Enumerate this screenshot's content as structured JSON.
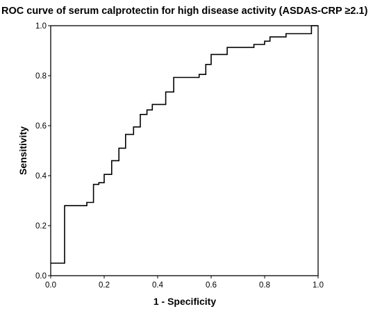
{
  "chart_data": {
    "type": "line",
    "title": "ROC curve of serum calprotectin for high disease activity (ASDAS-CRP ≥2.1)",
    "xlabel": "1 - Specificity",
    "ylabel": "Sensitivity",
    "xlim": [
      0,
      1
    ],
    "ylim": [
      0,
      1
    ],
    "grid": false,
    "legend": "none",
    "x_ticks": [
      "0.0",
      "0.2",
      "0.4",
      "0.6",
      "0.8",
      "1.0"
    ],
    "y_ticks": [
      "0.0",
      "0.2",
      "0.4",
      "0.6",
      "0.8",
      "1.0"
    ],
    "series": [
      {
        "color": "#000000",
        "step": true,
        "points": [
          [
            0.0,
            0.05
          ],
          [
            0.052,
            0.05
          ],
          [
            0.052,
            0.28
          ],
          [
            0.135,
            0.28
          ],
          [
            0.135,
            0.293
          ],
          [
            0.16,
            0.293
          ],
          [
            0.16,
            0.365
          ],
          [
            0.18,
            0.365
          ],
          [
            0.18,
            0.372
          ],
          [
            0.2,
            0.372
          ],
          [
            0.2,
            0.405
          ],
          [
            0.228,
            0.405
          ],
          [
            0.228,
            0.46
          ],
          [
            0.255,
            0.46
          ],
          [
            0.255,
            0.51
          ],
          [
            0.28,
            0.51
          ],
          [
            0.28,
            0.565
          ],
          [
            0.31,
            0.565
          ],
          [
            0.31,
            0.595
          ],
          [
            0.335,
            0.595
          ],
          [
            0.335,
            0.645
          ],
          [
            0.36,
            0.645
          ],
          [
            0.36,
            0.663
          ],
          [
            0.38,
            0.663
          ],
          [
            0.38,
            0.685
          ],
          [
            0.43,
            0.685
          ],
          [
            0.43,
            0.735
          ],
          [
            0.46,
            0.735
          ],
          [
            0.46,
            0.793
          ],
          [
            0.555,
            0.793
          ],
          [
            0.555,
            0.805
          ],
          [
            0.58,
            0.805
          ],
          [
            0.58,
            0.845
          ],
          [
            0.6,
            0.845
          ],
          [
            0.6,
            0.885
          ],
          [
            0.66,
            0.885
          ],
          [
            0.66,
            0.913
          ],
          [
            0.76,
            0.913
          ],
          [
            0.76,
            0.925
          ],
          [
            0.8,
            0.925
          ],
          [
            0.8,
            0.938
          ],
          [
            0.82,
            0.938
          ],
          [
            0.82,
            0.955
          ],
          [
            0.88,
            0.955
          ],
          [
            0.88,
            0.968
          ],
          [
            0.975,
            0.968
          ],
          [
            0.975,
            1.0
          ],
          [
            1.0,
            1.0
          ]
        ]
      }
    ]
  }
}
